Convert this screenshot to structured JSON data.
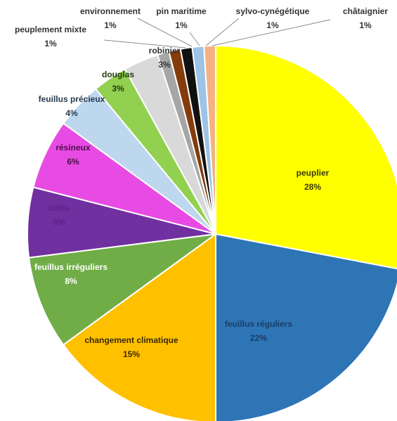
{
  "chart_data": {
    "type": "pie",
    "title": "",
    "slices": [
      {
        "label": "peuplier",
        "value": 28,
        "pct": "28%",
        "color": "#FFFF00",
        "text_color": "#3a3a00"
      },
      {
        "label": "feuillus réguliers",
        "value": 22,
        "pct": "22%",
        "color": "#2E75B6",
        "text_color": "#1a3d66"
      },
      {
        "label": "changement climatique",
        "value": 15,
        "pct": "15%",
        "color": "#FFC000",
        "text_color": "#3a2a00"
      },
      {
        "label": "feuillus irréguliers",
        "value": 8,
        "pct": "8%",
        "color": "#70AD47",
        "text_color": "#ffffff"
      },
      {
        "label": "taillis",
        "value": 6,
        "pct": "6%",
        "color": "#7030A0",
        "text_color": "#5a2585"
      },
      {
        "label": "résineux",
        "value": 6,
        "pct": "6%",
        "color": "#E84BE3",
        "text_color": "#4a0f48"
      },
      {
        "label": "feuillus précieux",
        "value": 4,
        "pct": "4%",
        "color": "#BDD7EE",
        "text_color": "#263a4d"
      },
      {
        "label": "douglas",
        "value": 3,
        "pct": "3%",
        "color": "#92D050",
        "text_color": "#1f3a0a"
      },
      {
        "label": "robinier",
        "value": 3,
        "pct": "3%",
        "color": "#D9D9D9",
        "text_color": "#333333"
      },
      {
        "label": "peuplement mixte",
        "value": 1,
        "pct": "1%",
        "color": "#A6A6A6",
        "text_color": "#333333"
      },
      {
        "label": "environnement",
        "value": 1,
        "pct": "1%",
        "color": "#843C0C",
        "text_color": "#333333"
      },
      {
        "label": "pin maritime",
        "value": 1,
        "pct": "1%",
        "color": "#111111",
        "text_color": "#333333"
      },
      {
        "label": "sylvo-cynégétique",
        "value": 1,
        "pct": "1%",
        "color": "#9DC3E6",
        "text_color": "#333333"
      },
      {
        "label": "châtaignier",
        "value": 1,
        "pct": "1%",
        "color": "#F4B183",
        "text_color": "#333333"
      }
    ],
    "legend": "none"
  }
}
